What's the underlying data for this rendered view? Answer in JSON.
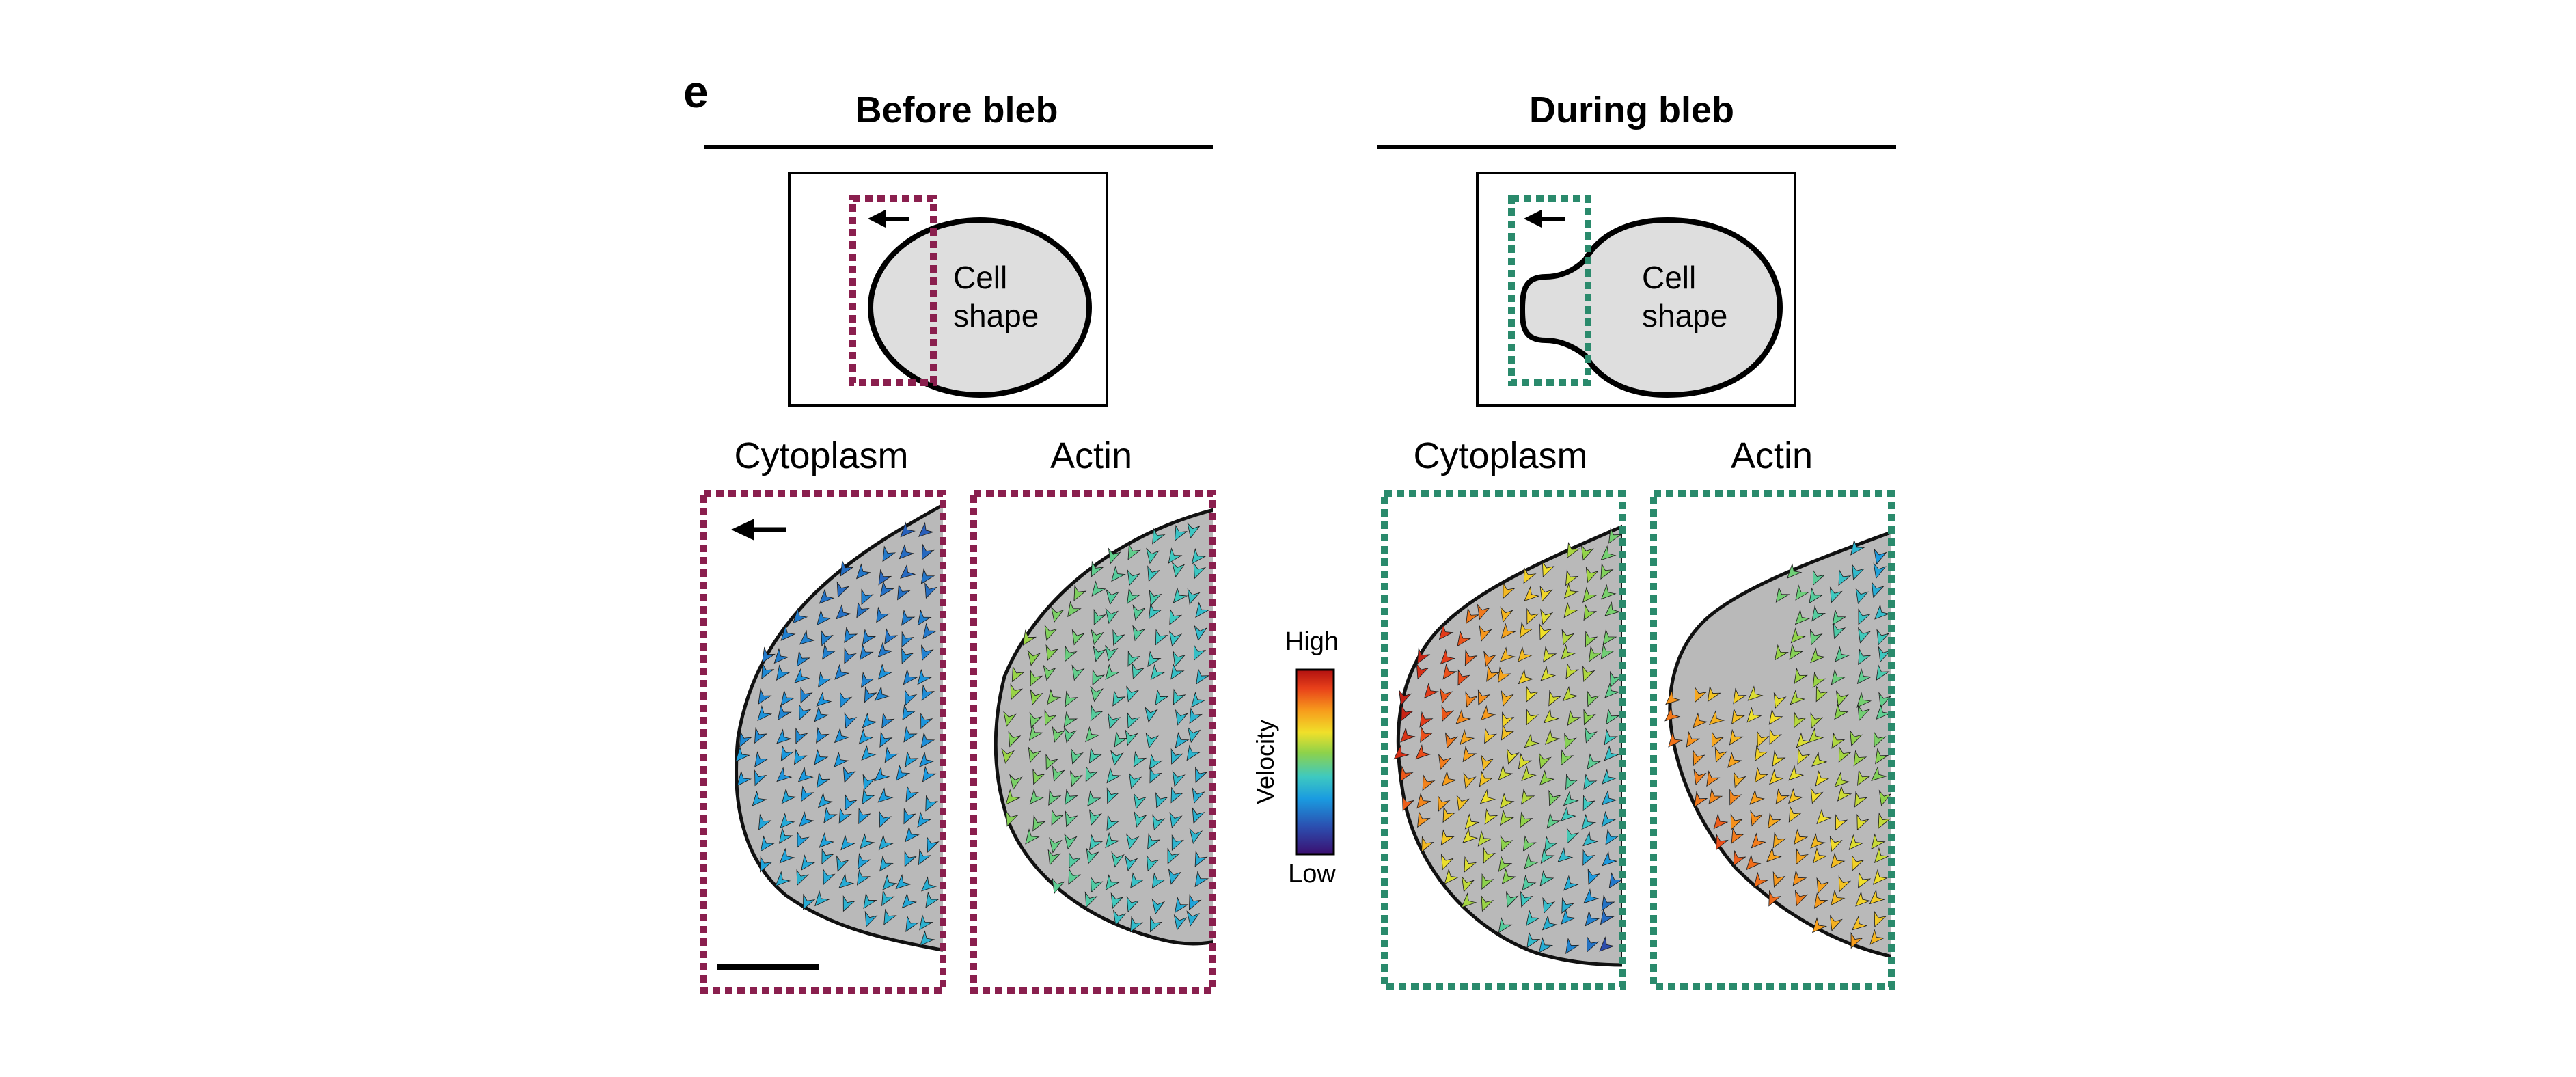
{
  "figure": {
    "panel_letter": "e",
    "sections": [
      {
        "title": "Before bleb",
        "schematic_label_line1": "Cell",
        "schematic_label_line2": "shape",
        "columns": [
          "Cytoplasm",
          "Actin"
        ],
        "box_color": "#8a1f4e"
      },
      {
        "title": "During bleb",
        "schematic_label_line1": "Cell",
        "schematic_label_line2": "shape",
        "columns": [
          "Cytoplasm",
          "Actin"
        ],
        "box_color": "#2a8a6c"
      }
    ],
    "colorbar": {
      "title": "Velocity",
      "high_label": "High",
      "low_label": "Low",
      "colors": [
        "#3b0f70",
        "#2b4fb0",
        "#1a9be0",
        "#3ec9c0",
        "#8ed24a",
        "#f0e02a",
        "#f79b1c",
        "#e8401a",
        "#b01010"
      ]
    },
    "cell_fill_color": "#b9b9b9",
    "schematic_fill_color": "#dedede"
  }
}
